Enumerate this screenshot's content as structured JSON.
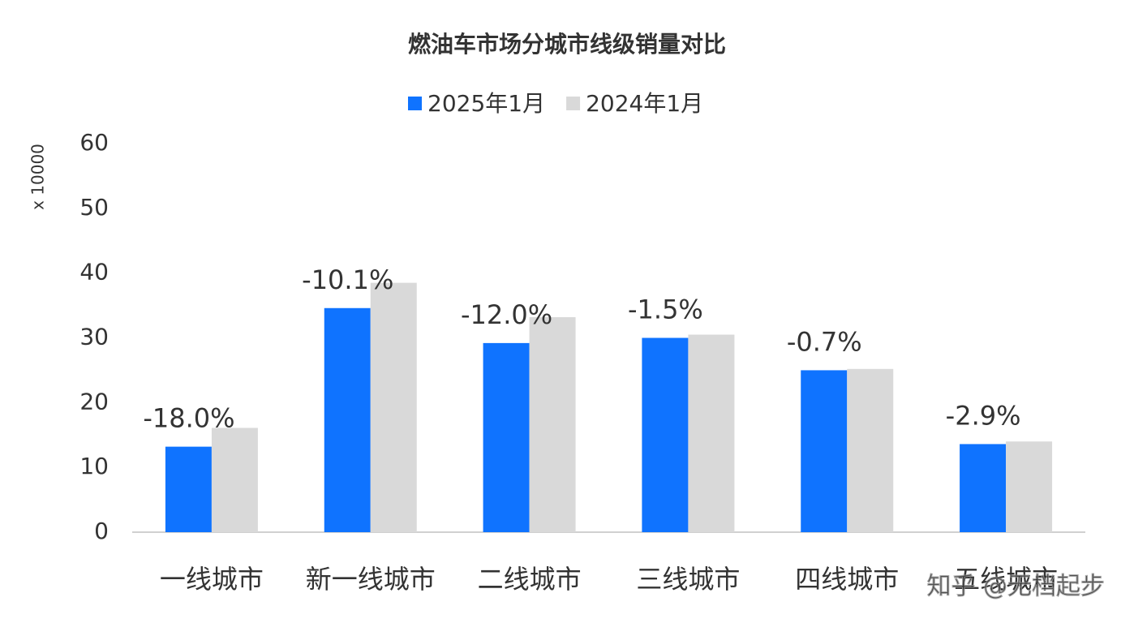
{
  "chart_data": {
    "type": "bar",
    "title": "燃油车市场分城市线级销量对比",
    "y_label": "x 10000",
    "categories": [
      "一线城市",
      "新一线城市",
      "二线城市",
      "三线城市",
      "四线城市",
      "五线城市"
    ],
    "series": [
      {
        "name": "2025年1月",
        "color": "#0f73ff",
        "values": [
          13.2,
          34.6,
          29.2,
          30.0,
          25.0,
          13.6
        ]
      },
      {
        "name": "2024年1月",
        "color": "#d9d9d9",
        "values": [
          16.1,
          38.5,
          33.2,
          30.5,
          25.2,
          14.0
        ]
      }
    ],
    "annotations": [
      "-18.0%",
      "-10.1%",
      "-12.0%",
      "-1.5%",
      "-0.7%",
      "-2.9%"
    ],
    "watermark": "知乎 @无档起步",
    "ylim": [
      0,
      60
    ],
    "yticks": [
      0,
      10,
      20,
      30,
      40,
      50,
      60
    ],
    "grid": false,
    "legend": "top"
  }
}
